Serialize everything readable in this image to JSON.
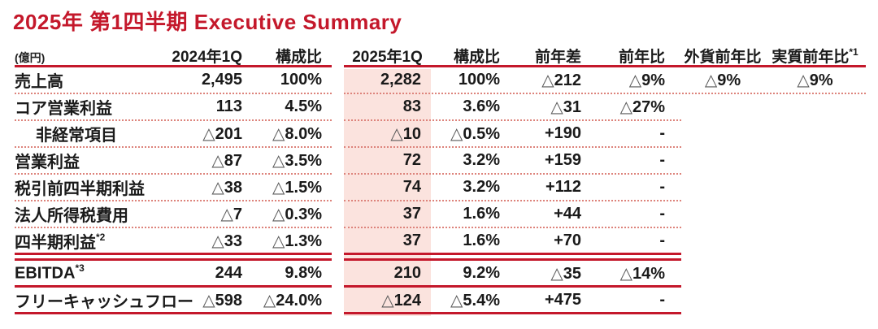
{
  "title": "2025年 第1四半期 Executive Summary",
  "colors": {
    "accent_red": "#c4182b",
    "pink_highlight": "#fbe3de",
    "dotted_separator": "#dd837b",
    "text": "#1a1a1a",
    "triangle_gray": "#595959"
  },
  "table": {
    "unit_label": "(億円)",
    "headers": {
      "col_2024q1": "2024年1Q",
      "col_share_2024": "構成比",
      "col_2025q1": "2025年1Q",
      "col_share_2025": "構成比",
      "col_yoy_diff": "前年差",
      "col_yoy_pct": "前年比",
      "col_fx_yoy": "外貨前年比",
      "col_real_yoy": "実質前年比",
      "col_real_yoy_sup": "*1"
    },
    "rows": [
      {
        "label": "売上高",
        "v": [
          "2,495",
          "100%",
          "2,282",
          "100%",
          "△212",
          "△9%",
          "△9%",
          "△9%"
        ]
      },
      {
        "label": "コア営業利益",
        "v": [
          "113",
          "4.5%",
          "83",
          "3.6%",
          "△31",
          "△27%",
          "",
          ""
        ]
      },
      {
        "label": "非経常項目",
        "v": [
          "△201",
          "△8.0%",
          "△10",
          "△0.5%",
          "+190",
          "-",
          "",
          ""
        ]
      },
      {
        "label": "営業利益",
        "v": [
          "△87",
          "△3.5%",
          "72",
          "3.2%",
          "+159",
          "-",
          "",
          ""
        ]
      },
      {
        "label": "税引前四半期利益",
        "v": [
          "△38",
          "△1.5%",
          "74",
          "3.2%",
          "+112",
          "-",
          "",
          ""
        ]
      },
      {
        "label": "法人所得税費用",
        "v": [
          "△7",
          "△0.3%",
          "37",
          "1.6%",
          "+44",
          "-",
          "",
          ""
        ]
      },
      {
        "label": "四半期利益",
        "sup": "*2",
        "v": [
          "△33",
          "△1.3%",
          "37",
          "1.6%",
          "+70",
          "-",
          "",
          ""
        ]
      },
      {
        "label": "EBITDA",
        "sup": "*3",
        "v": [
          "244",
          "9.8%",
          "210",
          "9.2%",
          "△35",
          "△14%",
          "",
          ""
        ]
      },
      {
        "label": "フリーキャッシュフロー",
        "v": [
          "△598",
          "△24.0%",
          "△124",
          "△5.4%",
          "+475",
          "-",
          "",
          ""
        ]
      }
    ]
  }
}
